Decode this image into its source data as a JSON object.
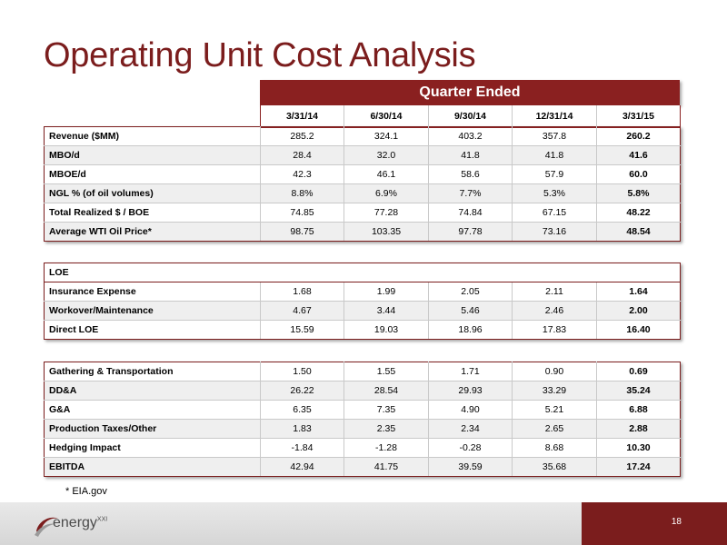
{
  "title": "Operating Unit Cost Analysis",
  "header": {
    "band": "Quarter Ended",
    "columns": [
      "3/31/14",
      "6/30/14",
      "9/30/14",
      "12/31/14",
      "3/31/15"
    ]
  },
  "table1": [
    {
      "label": "Revenue ($MM)",
      "values": [
        "285.2",
        "324.1",
        "403.2",
        "357.8",
        "260.2"
      ]
    },
    {
      "label": "MBO/d",
      "values": [
        "28.4",
        "32.0",
        "41.8",
        "41.8",
        "41.6"
      ]
    },
    {
      "label": "MBOE/d",
      "values": [
        "42.3",
        "46.1",
        "58.6",
        "57.9",
        "60.0"
      ]
    },
    {
      "label": "NGL % (of oil volumes)",
      "values": [
        "8.8%",
        "6.9%",
        "7.7%",
        "5.3%",
        "5.8%"
      ]
    },
    {
      "label": "Total Realized $ / BOE",
      "values": [
        "74.85",
        "77.28",
        "74.84",
        "67.15",
        "48.22"
      ]
    },
    {
      "label": "Average WTI Oil Price*",
      "values": [
        "98.75",
        "103.35",
        "97.78",
        "73.16",
        "48.54"
      ]
    }
  ],
  "loe": {
    "heading": "LOE",
    "rows": [
      {
        "label": "Insurance Expense",
        "values": [
          "1.68",
          "1.99",
          "2.05",
          "2.11",
          "1.64"
        ]
      },
      {
        "label": "Workover/Maintenance",
        "values": [
          "4.67",
          "3.44",
          "5.46",
          "2.46",
          "2.00"
        ]
      },
      {
        "label": "Direct LOE",
        "values": [
          "15.59",
          "19.03",
          "18.96",
          "17.83",
          "16.40"
        ]
      }
    ]
  },
  "table3": [
    {
      "label": "Gathering & Transportation",
      "values": [
        "1.50",
        "1.55",
        "1.71",
        "0.90",
        "0.69"
      ]
    },
    {
      "label": "DD&A",
      "values": [
        "26.22",
        "28.54",
        "29.93",
        "33.29",
        "35.24"
      ]
    },
    {
      "label": "G&A",
      "values": [
        "6.35",
        "7.35",
        "4.90",
        "5.21",
        "6.88"
      ]
    },
    {
      "label": "Production Taxes/Other",
      "values": [
        "1.83",
        "2.35",
        "2.34",
        "2.65",
        "2.88"
      ]
    },
    {
      "label": "Hedging Impact",
      "values": [
        "-1.84",
        "-1.28",
        "-0.28",
        "8.68",
        "10.30"
      ]
    },
    {
      "label": "EBITDA",
      "values": [
        "42.94",
        "41.75",
        "39.59",
        "35.68",
        "17.24"
      ]
    }
  ],
  "footnote": "*  EIA.gov",
  "logo": {
    "text": "energy",
    "sup": "XXI"
  },
  "page_number": "18",
  "colors": {
    "brand": "#7b1d1d",
    "shade": "#efefef"
  }
}
